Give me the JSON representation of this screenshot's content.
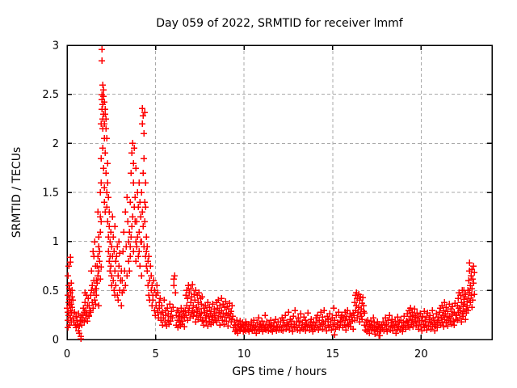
{
  "page": {
    "background": "#ffffff"
  },
  "chart_data": {
    "type": "scatter",
    "title": "Day 059 of 2022, SRMTID for receiver lmmf",
    "xlabel": "GPS time / hours",
    "ylabel": "SRMTID / TECUs",
    "xlim": [
      0,
      24
    ],
    "ylim": [
      0,
      3
    ],
    "xticks": [
      0,
      5,
      10,
      15,
      20
    ],
    "yticks": [
      0,
      0.5,
      1,
      1.5,
      2,
      2.5,
      3
    ],
    "grid": true,
    "legend": "none",
    "marker": "plus",
    "marker_color": "#ff0000",
    "grid_color": "#aaaaaa",
    "axis_color": "#000000",
    "points_encoding": "segments expand to points (x0 + i*dx, y[i]); extra_points are literal [x,y] pairs; y in TECUs, x in hours",
    "segments": [
      {
        "x0": 0.02,
        "dx": 0.02,
        "y": [
          0.32,
          0.45,
          0.28,
          0.38,
          0.25,
          0.41,
          0.35,
          0.22,
          0.48,
          0.3,
          0.36,
          0.27,
          0.44,
          0.33,
          0.4
        ]
      },
      {
        "x0": 0.32,
        "dx": 0.04,
        "y": [
          0.22,
          0.18,
          0.28,
          0.15,
          0.24,
          0.12,
          0.2,
          0.16,
          0.26,
          0.14,
          0.19,
          0.23
        ]
      },
      {
        "x0": 0.82,
        "dx": 0.03,
        "y": [
          0.15,
          0.25,
          0.2,
          0.32,
          0.18,
          0.28,
          0.38,
          0.22,
          0.3,
          0.26,
          0.35,
          0.19,
          0.42,
          0.24
        ]
      },
      {
        "x0": 1.22,
        "dx": 0.03,
        "y": [
          0.25,
          0.35,
          0.3,
          0.45,
          0.28,
          0.5,
          0.38,
          0.55,
          0.32,
          0.48,
          0.6,
          0.4,
          0.52,
          0.36
        ]
      },
      {
        "x0": 1.62,
        "dx": 0.02,
        "y": [
          0.45,
          0.6,
          0.52,
          0.75,
          0.58,
          0.85,
          0.65,
          0.95,
          0.7,
          1.05,
          0.8,
          0.9,
          0.62,
          1.1,
          0.74
        ]
      },
      {
        "x0": 1.9,
        "dx": 0.01,
        "y": [
          1.2,
          1.6,
          2.2,
          1.85,
          2.45,
          2.96,
          2.35,
          2.84,
          2.5,
          2.25,
          2.6,
          2.15,
          2.4,
          1.95,
          2.48,
          2.3,
          1.75,
          2.55,
          2.05,
          2.42,
          1.55,
          2.2,
          1.4,
          2.35,
          1.3
        ]
      },
      {
        "x0": 2.15,
        "dx": 0.015,
        "y": [
          2.3,
          1.9,
          2.15,
          1.7,
          2.25,
          1.5,
          2.05,
          1.35,
          1.8,
          1.2,
          1.6,
          1.05,
          1.45,
          0.9,
          1.3,
          0.8,
          1.15,
          0.7,
          1.0,
          0.85
        ]
      },
      {
        "x0": 2.45,
        "dx": 0.02,
        "y": [
          0.75,
          1.1,
          0.65,
          0.95,
          0.55,
          1.25,
          0.85,
          0.6,
          1.05,
          0.5,
          0.9,
          0.7,
          1.15,
          0.45,
          0.8
        ]
      },
      {
        "x0": 2.76,
        "dx": 0.025,
        "y": [
          0.55,
          0.85,
          0.45,
          0.95,
          0.65,
          0.4,
          0.75,
          1.0,
          0.5,
          0.88,
          0.6,
          0.35,
          0.7,
          0.48
        ]
      },
      {
        "x0": 3.12,
        "dx": 0.03,
        "y": [
          0.6,
          0.9,
          0.5,
          1.1,
          0.7,
          1.3,
          0.55,
          0.95,
          1.45,
          0.65,
          1.2,
          0.8,
          1.0
        ]
      },
      {
        "x0": 3.5,
        "dx": 0.02,
        "y": [
          0.7,
          1.1,
          0.85,
          1.4,
          0.95,
          1.7,
          1.05,
          1.9,
          1.15,
          2.0,
          1.25,
          1.8,
          0.9,
          1.6,
          1.35,
          1.95,
          1.45,
          1.2,
          1.75,
          1.0
        ]
      },
      {
        "x0": 3.9,
        "dx": 0.02,
        "y": [
          0.8,
          1.2,
          0.95,
          1.5,
          1.05,
          1.35,
          0.85,
          1.6,
          1.1,
          0.9,
          1.4,
          0.75,
          1.25,
          1.0,
          0.65
        ]
      },
      {
        "x0": 4.2,
        "dx": 0.015,
        "y": [
          1.0,
          1.5,
          2.2,
          1.3,
          2.36,
          1.7,
          2.28,
          1.15,
          2.1,
          0.95,
          1.85,
          1.4,
          2.32,
          1.2,
          1.6,
          0.85,
          1.35,
          1.05,
          0.9,
          0.75
        ]
      },
      {
        "x0": 4.5,
        "dx": 0.025,
        "y": [
          0.7,
          0.95,
          0.55,
          0.8,
          0.45,
          0.85,
          0.6,
          0.4,
          0.75,
          0.5,
          0.65,
          0.35,
          0.55,
          0.45
        ]
      },
      {
        "x0": 4.85,
        "dx": 0.03,
        "y": [
          0.4,
          0.6,
          0.3,
          0.5,
          0.25,
          0.45,
          0.35,
          0.55,
          0.28,
          0.48,
          0.22,
          0.38,
          0.32,
          0.42,
          0.26
        ]
      },
      {
        "x0": 5.3,
        "dx": 0.035,
        "y": [
          0.2,
          0.35,
          0.15,
          0.28,
          0.22,
          0.4,
          0.18,
          0.3,
          0.25,
          0.14,
          0.32,
          0.2,
          0.26,
          0.16,
          0.36,
          0.24,
          0.19,
          0.29,
          0.22,
          0.33
        ]
      },
      {
        "x0": 6.15,
        "dx": 0.03,
        "y": [
          0.25,
          0.15,
          0.3,
          0.2,
          0.12,
          0.28,
          0.18,
          0.24,
          0.14,
          0.32,
          0.22,
          0.16,
          0.26,
          0.19,
          0.29,
          0.13,
          0.23
        ]
      },
      {
        "x0": 6.66,
        "dx": 0.025,
        "y": [
          0.3,
          0.45,
          0.25,
          0.5,
          0.35,
          0.2,
          0.42,
          0.55,
          0.28,
          0.48,
          0.32,
          0.22,
          0.52,
          0.38,
          0.26,
          0.44,
          0.3,
          0.56,
          0.35,
          0.24,
          0.46,
          0.28,
          0.4,
          0.18,
          0.5,
          0.33,
          0.25,
          0.45,
          0.29,
          0.38,
          0.21,
          0.48,
          0.31,
          0.26,
          0.42,
          0.23,
          0.36,
          0.27,
          0.44,
          0.19
        ]
      },
      {
        "x0": 7.66,
        "dx": 0.03,
        "y": [
          0.2,
          0.32,
          0.15,
          0.28,
          0.22,
          0.35,
          0.18,
          0.25,
          0.3,
          0.14,
          0.38,
          0.24,
          0.19,
          0.33,
          0.26,
          0.16,
          0.29,
          0.21,
          0.36,
          0.23,
          0.17,
          0.31,
          0.25,
          0.2,
          0.27
        ]
      },
      {
        "x0": 8.4,
        "dx": 0.03,
        "y": [
          0.25,
          0.38,
          0.18,
          0.32,
          0.22,
          0.4,
          0.28,
          0.15,
          0.35,
          0.24,
          0.42,
          0.3,
          0.2,
          0.36,
          0.26,
          0.16,
          0.33,
          0.23,
          0.39,
          0.27,
          0.19,
          0.34,
          0.25,
          0.14,
          0.31,
          0.22,
          0.37,
          0.26,
          0.18,
          0.29,
          0.21,
          0.35,
          0.24
        ]
      },
      {
        "x0": 9.4,
        "dx": 0.035,
        "y": [
          0.12,
          0.18,
          0.08,
          0.15,
          0.1,
          0.2,
          0.13,
          0.07,
          0.16,
          0.11,
          0.19,
          0.09,
          0.14,
          0.12,
          0.17,
          0.08,
          0.15,
          0.1,
          0.13,
          0.18,
          0.09,
          0.16,
          0.11
        ]
      },
      {
        "x0": 10.2,
        "dx": 0.04,
        "y": [
          0.1,
          0.16,
          0.08,
          0.14,
          0.11,
          0.18,
          0.09,
          0.15,
          0.12,
          0.2,
          0.1,
          0.13,
          0.07,
          0.17,
          0.11,
          0.22,
          0.14,
          0.09,
          0.16,
          0.12,
          0.19,
          0.08,
          0.15,
          0.11,
          0.25,
          0.13,
          0.1,
          0.18,
          0.12,
          0.09,
          0.16,
          0.14,
          0.2,
          0.1,
          0.15,
          0.08,
          0.13,
          0.17,
          0.11,
          0.21,
          0.09,
          0.14,
          0.12,
          0.18,
          0.1
        ]
      },
      {
        "x0": 12.0,
        "dx": 0.04,
        "y": [
          0.12,
          0.18,
          0.1,
          0.22,
          0.14,
          0.09,
          0.2,
          0.15,
          0.25,
          0.11,
          0.17,
          0.13,
          0.28,
          0.16,
          0.1,
          0.21,
          0.14,
          0.19,
          0.08,
          0.24,
          0.12,
          0.16,
          0.3,
          0.13,
          0.18,
          0.1,
          0.22,
          0.15,
          0.09,
          0.19,
          0.26,
          0.12,
          0.17,
          0.11,
          0.23,
          0.14,
          0.2,
          0.09,
          0.16,
          0.13,
          0.27,
          0.15,
          0.1,
          0.18,
          0.12,
          0.21,
          0.14,
          0.08,
          0.17,
          0.11
        ]
      },
      {
        "x0": 14.0,
        "dx": 0.04,
        "y": [
          0.15,
          0.22,
          0.12,
          0.18,
          0.25,
          0.1,
          0.2,
          0.14,
          0.28,
          0.16,
          0.11,
          0.23,
          0.17,
          0.3,
          0.13,
          0.19,
          0.09,
          0.24,
          0.15,
          0.21,
          0.12,
          0.26,
          0.18,
          0.1,
          0.22,
          0.14,
          0.32,
          0.16,
          0.2,
          0.11,
          0.25,
          0.13,
          0.17,
          0.28,
          0.12,
          0.19,
          0.15,
          0.23
        ]
      },
      {
        "x0": 15.5,
        "dx": 0.035,
        "y": [
          0.18,
          0.25,
          0.12,
          0.22,
          0.15,
          0.28,
          0.2,
          0.1,
          0.24,
          0.16,
          0.3,
          0.14,
          0.21,
          0.17,
          0.26,
          0.13,
          0.23,
          0.19,
          0.11,
          0.27
        ]
      },
      {
        "x0": 16.2,
        "dx": 0.025,
        "y": [
          0.25,
          0.38,
          0.2,
          0.45,
          0.3,
          0.48,
          0.35,
          0.22,
          0.42,
          0.28,
          0.46,
          0.33,
          0.18,
          0.4,
          0.26,
          0.44,
          0.31,
          0.24,
          0.37,
          0.21,
          0.43,
          0.29,
          0.35,
          0.27
        ]
      },
      {
        "x0": 16.8,
        "dx": 0.035,
        "y": [
          0.15,
          0.1,
          0.18,
          0.08,
          0.14,
          0.2,
          0.11,
          0.16,
          0.07,
          0.13,
          0.19,
          0.09,
          0.15,
          0.12,
          0.22,
          0.1,
          0.17,
          0.06,
          0.14,
          0.11,
          0.18,
          0.08,
          0.13,
          0.16,
          0.04,
          0.12,
          0.09,
          0.15,
          0.11
        ]
      },
      {
        "x0": 17.8,
        "dx": 0.04,
        "y": [
          0.12,
          0.18,
          0.09,
          0.15,
          0.22,
          0.11,
          0.16,
          0.08,
          0.2,
          0.13,
          0.25,
          0.1,
          0.17,
          0.14,
          0.21,
          0.09,
          0.15,
          0.12,
          0.19,
          0.07,
          0.16,
          0.23,
          0.11,
          0.14,
          0.18,
          0.1,
          0.2,
          0.13,
          0.08,
          0.17,
          0.12,
          0.24,
          0.15,
          0.11,
          0.19
        ]
      },
      {
        "x0": 19.2,
        "dx": 0.03,
        "y": [
          0.18,
          0.26,
          0.14,
          0.3,
          0.2,
          0.12,
          0.24,
          0.32,
          0.16,
          0.28,
          0.21,
          0.13,
          0.25,
          0.17,
          0.31,
          0.19,
          0.23,
          0.15,
          0.27,
          0.22
        ]
      },
      {
        "x0": 19.8,
        "dx": 0.035,
        "y": [
          0.15,
          0.22,
          0.11,
          0.18,
          0.26,
          0.13,
          0.2,
          0.09,
          0.24,
          0.16,
          0.29,
          0.12,
          0.19,
          0.15,
          0.23,
          0.1,
          0.27,
          0.14,
          0.21,
          0.17,
          0.25,
          0.11,
          0.18,
          0.3,
          0.13,
          0.22,
          0.16,
          0.09,
          0.2,
          0.14,
          0.26,
          0.18,
          0.12,
          0.23,
          0.17
        ]
      },
      {
        "x0": 21.0,
        "dx": 0.03,
        "y": [
          0.2,
          0.28,
          0.15,
          0.32,
          0.22,
          0.18,
          0.35,
          0.25,
          0.13,
          0.3,
          0.21,
          0.38,
          0.26,
          0.17,
          0.33,
          0.23,
          0.14,
          0.29,
          0.2,
          0.36,
          0.24,
          0.18,
          0.31,
          0.22,
          0.16,
          0.34,
          0.26,
          0.19,
          0.28,
          0.15,
          0.37,
          0.25,
          0.21
        ]
      },
      {
        "x0": 22.0,
        "dx": 0.025,
        "y": [
          0.25,
          0.35,
          0.2,
          0.42,
          0.28,
          0.48,
          0.32,
          0.22,
          0.45,
          0.3,
          0.18,
          0.38,
          0.26,
          0.5,
          0.34,
          0.24,
          0.41,
          0.29,
          0.36,
          0.21,
          0.46,
          0.31,
          0.27,
          0.39
        ]
      },
      {
        "x0": 22.6,
        "dx": 0.02,
        "y": [
          0.35,
          0.5,
          0.3,
          0.6,
          0.42,
          0.7,
          0.48,
          0.78,
          0.55,
          0.38,
          0.65,
          0.45,
          0.72,
          0.52,
          0.33,
          0.62,
          0.4,
          0.75,
          0.58,
          0.46,
          0.68
        ]
      }
    ],
    "extra_points": [
      [
        0.05,
        0.65
      ],
      [
        0.1,
        0.75
      ],
      [
        0.18,
        0.84
      ],
      [
        0.2,
        0.79
      ],
      [
        0.08,
        0.55
      ],
      [
        0.15,
        0.52
      ],
      [
        0.22,
        0.58
      ],
      [
        0.12,
        0.15
      ],
      [
        0.25,
        0.18
      ],
      [
        0.28,
        0.5
      ],
      [
        0.03,
        0.2
      ],
      [
        0.06,
        0.12
      ],
      [
        0.77,
        0.01
      ],
      [
        0.79,
        0.03
      ],
      [
        0.62,
        0.09
      ],
      [
        0.7,
        0.07
      ],
      [
        1.0,
        0.48
      ],
      [
        1.1,
        0.45
      ],
      [
        1.45,
        0.9
      ],
      [
        1.5,
        0.85
      ],
      [
        1.55,
        1.0
      ],
      [
        1.38,
        0.7
      ],
      [
        1.58,
        0.75
      ],
      [
        1.75,
        1.3
      ],
      [
        1.85,
        1.5
      ],
      [
        1.8,
        0.35
      ],
      [
        1.88,
        1.25
      ],
      [
        6.0,
        0.62
      ],
      [
        6.04,
        0.55
      ],
      [
        6.08,
        0.65
      ],
      [
        6.12,
        0.48
      ],
      [
        15.1,
        0.05
      ],
      [
        17.6,
        0.04
      ],
      [
        22.4,
        0.5
      ],
      [
        22.45,
        0.44
      ]
    ]
  }
}
